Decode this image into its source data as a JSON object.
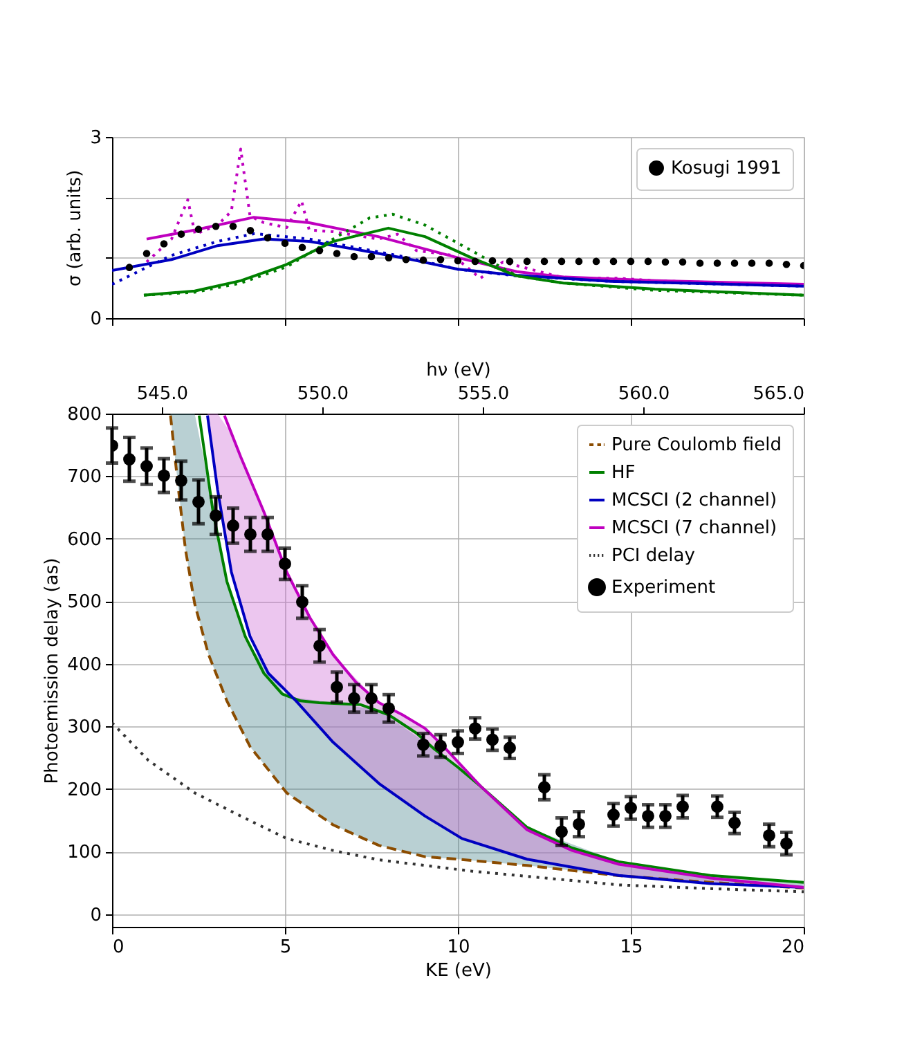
{
  "chart_data": [
    {
      "type": "line",
      "ylabel": "σ (arb. units)",
      "xlim": [
        0,
        20
      ],
      "ylim": [
        0,
        3
      ],
      "xticks": [
        {
          "value": 0,
          "label": null
        },
        {
          "value": 5,
          "label": null
        },
        {
          "value": 10,
          "label": null
        },
        {
          "value": 15,
          "label": null
        },
        {
          "value": 20,
          "label": null
        }
      ],
      "yticks": [
        0,
        {
          "value": 1,
          "label": null
        },
        {
          "value": 2,
          "label": null
        },
        3
      ],
      "tick_labels": "y",
      "grid": true,
      "legend": "top right",
      "series": [
        {
          "color": "#bf00bf",
          "line_style": "solid",
          "x": [
            1.0,
            2.4,
            4.1,
            5.7,
            7.7,
            10,
            11.7,
            13.1,
            15.7,
            20
          ],
          "values": [
            1.31,
            1.46,
            1.67,
            1.58,
            1.35,
            1.0,
            0.77,
            0.68,
            0.62,
            0.56
          ]
        },
        {
          "color": "#bf00bf",
          "line_style": "dotted",
          "x": [
            1.0,
            1.72,
            2.19,
            2.4,
            3.05,
            3.45,
            3.72,
            3.99,
            4.39,
            5.05,
            5.48,
            5.7,
            6.4,
            7.7,
            8.25,
            8.8,
            9.85,
            10.65,
            11.3,
            13.1,
            14.65,
            15.7,
            20
          ],
          "values": [
            0.93,
            1.31,
            1.96,
            1.39,
            1.54,
            1.77,
            2.8,
            1.69,
            1.58,
            1.5,
            1.94,
            1.46,
            1.43,
            1.31,
            1.39,
            1.12,
            1.04,
            0.66,
            0.93,
            0.66,
            0.66,
            0.62,
            0.54
          ]
        },
        {
          "color": "#0000c0",
          "line_style": "solid",
          "x": [
            0,
            1.72,
            3.05,
            4.39,
            5.7,
            7.05,
            8.4,
            10,
            11.7,
            14.4,
            20
          ],
          "values": [
            0.79,
            0.97,
            1.2,
            1.31,
            1.27,
            1.14,
            1.0,
            0.81,
            0.71,
            0.61,
            0.53
          ]
        },
        {
          "color": "#0000c0",
          "line_style": "dotted",
          "x": [
            0,
            1.72,
            3.05,
            4.12,
            5.7,
            7.05,
            8.4,
            10,
            11.7,
            14.4,
            20
          ],
          "values": [
            0.56,
            1.04,
            1.27,
            1.4,
            1.31,
            1.17,
            1.02,
            0.81,
            0.7,
            0.61,
            0.53
          ]
        },
        {
          "color": "#008000",
          "line_style": "solid",
          "x": [
            0.92,
            2.39,
            3.72,
            5.05,
            6.39,
            7.99,
            9.05,
            10.39,
            11.7,
            13.05,
            15.7,
            20
          ],
          "values": [
            0.38,
            0.45,
            0.62,
            0.89,
            1.27,
            1.49,
            1.35,
            1.0,
            0.7,
            0.58,
            0.48,
            0.38
          ]
        },
        {
          "color": "#008000",
          "line_style": "dotted",
          "x": [
            0.92,
            2.39,
            3.72,
            5.05,
            6.39,
            7.45,
            8.12,
            9.05,
            10.39,
            11.7,
            13.05,
            15.7,
            20
          ],
          "values": [
            0.38,
            0.43,
            0.58,
            0.85,
            1.31,
            1.66,
            1.72,
            1.54,
            1.12,
            0.7,
            0.58,
            0.46,
            0.38
          ]
        },
        {
          "name": "Kosugi 1991",
          "type": "scatter",
          "marker": "circle",
          "color": "#000000",
          "x": [
            0.5,
            1.0,
            1.5,
            2.0,
            2.5,
            3.0,
            3.5,
            4.0,
            4.5,
            5.0,
            5.5,
            6.0,
            6.5,
            7.0,
            7.5,
            8.0,
            8.5,
            9.0,
            9.5,
            10.0,
            10.5,
            11.0,
            11.5,
            12.0,
            12.5,
            13.0,
            13.5,
            14.0,
            14.5,
            15.0,
            15.5,
            16.0,
            16.5,
            17.0,
            17.5,
            18.0,
            18.5,
            19.0,
            19.5,
            20.0
          ],
          "values": [
            0.84,
            1.07,
            1.23,
            1.39,
            1.47,
            1.52,
            1.52,
            1.45,
            1.33,
            1.24,
            1.17,
            1.12,
            1.07,
            1.02,
            1.02,
            1.0,
            0.97,
            0.96,
            0.97,
            0.95,
            0.94,
            0.95,
            0.94,
            0.94,
            0.94,
            0.94,
            0.94,
            0.94,
            0.94,
            0.94,
            0.94,
            0.93,
            0.93,
            0.91,
            0.91,
            0.91,
            0.91,
            0.91,
            0.89,
            0.87
          ]
        }
      ]
    },
    {
      "type": "line",
      "xlabel": "KE (eV)",
      "ylabel": "Photoemission delay (as)",
      "x2label": "hν (eV)",
      "xlim": [
        0,
        20
      ],
      "ylim": [
        -20,
        800
      ],
      "xticks": [
        0,
        5,
        10,
        15,
        20
      ],
      "yticks": [
        0,
        100,
        200,
        300,
        400,
        500,
        600,
        700,
        800
      ],
      "x2lim": [
        543.45,
        565
      ],
      "x2ticks": [
        {
          "value": 545,
          "label": "545.0"
        },
        {
          "value": 550,
          "label": "550.0"
        },
        {
          "value": 555,
          "label": "555.0"
        },
        {
          "value": 560,
          "label": "560.0"
        },
        {
          "value": 565,
          "label": "565.0"
        }
      ],
      "grid": true,
      "legend": "top right",
      "series": [
        {
          "name": "Pure Coulomb field",
          "color": "#8b4c00",
          "line_style": "dashed",
          "x": [
            1.69,
            1.92,
            2.12,
            2.39,
            2.79,
            3.32,
            3.99,
            5.05,
            6.39,
            7.72,
            9.05,
            10,
            12,
            14.6,
            17.3,
            20
          ],
          "values": [
            797,
            679,
            584,
            496,
            415,
            341,
            268,
            194,
            143,
            110,
            92,
            88,
            78,
            62,
            51,
            42
          ],
          "lower": [
            797,
            679,
            584,
            496,
            415,
            341,
            268,
            194,
            143,
            110,
            92,
            88,
            78,
            62,
            51,
            42
          ],
          "upper": [
            800,
            800,
            800,
            800,
            690,
            532,
            430,
            348,
            338,
            326,
            275,
            235,
            139,
            85,
            62,
            51
          ]
        },
        {
          "name": "HF",
          "color": "#008000",
          "line_style": "solid",
          "x": [
            2.52,
            2.92,
            3.32,
            3.85,
            4.39,
            4.92,
            5.45,
            5.99,
            7.19,
            7.99,
            8.79,
            9.32,
            10,
            10.65,
            12,
            13.3,
            14.65,
            17.3,
            20
          ],
          "values": [
            797,
            643,
            532,
            444,
            385,
            352,
            341,
            338,
            335,
            319,
            290,
            264,
            235,
            205,
            139,
            106,
            84,
            62,
            51
          ]
        },
        {
          "name": "MCSCI (2 channel)",
          "color": "#0000c0",
          "line_style": "solid",
          "x": [
            2.76,
            3.05,
            3.45,
            3.99,
            4.52,
            5.32,
            6.39,
            7.72,
            9.05,
            10.12,
            12,
            14.65,
            17.3,
            20
          ],
          "values": [
            797,
            679,
            547,
            444,
            385,
            341,
            275,
            209,
            157,
            121,
            88,
            62,
            49,
            43
          ],
          "lower": [
            797,
            679,
            547,
            444,
            385,
            341,
            275,
            209,
            157,
            121,
            88,
            62,
            49,
            43
          ],
          "upper": [
            800,
            800,
            768,
            693,
            624,
            516,
            415,
            338,
            297,
            236,
            135,
            80,
            58,
            43
          ]
        },
        {
          "name": "MCSCI (7 channel)",
          "color": "#bf00bf",
          "line_style": "solid",
          "x": [
            3.25,
            3.72,
            4.39,
            5.05,
            5.72,
            6.39,
            7.05,
            7.72,
            8.39,
            9.05,
            9.59,
            10.65,
            12,
            13.3,
            14.65,
            17.3,
            20
          ],
          "values": [
            797,
            731,
            643,
            547,
            474,
            415,
            371,
            338,
            319,
            297,
            268,
            205,
            135,
            102,
            80,
            58,
            43
          ]
        },
        {
          "name": "PCI delay",
          "color": "#333333",
          "line_style": "dotted",
          "x": [
            0,
            1.05,
            2.39,
            3.72,
            5.05,
            6.39,
            7.72,
            10.39,
            14.65,
            17.3,
            20
          ],
          "values": [
            306,
            246,
            194,
            157,
            121,
            102,
            87,
            69,
            47,
            41,
            36
          ]
        },
        {
          "name": "Experiment",
          "type": "scatter",
          "marker": "circle",
          "color": "#000000",
          "x": [
            0,
            0.5,
            1.0,
            1.5,
            2.0,
            2.5,
            3.0,
            3.5,
            4.0,
            4.5,
            5.0,
            5.5,
            6.0,
            6.5,
            7.0,
            7.5,
            8.0,
            9.0,
            9.5,
            10.0,
            10.5,
            11.0,
            11.5,
            12.5,
            13.0,
            13.5,
            14.5,
            15.0,
            15.5,
            16.0,
            16.5,
            17.5,
            18.0,
            19.0,
            19.5
          ],
          "values": [
            749,
            727,
            716,
            701,
            693,
            659,
            637,
            621,
            607,
            607,
            560,
            499,
            429,
            363,
            345,
            345,
            329,
            271,
            269,
            275,
            297,
            279,
            266,
            203,
            132,
            144,
            159,
            170,
            157,
            157,
            172,
            172,
            146,
            126,
            113
          ],
          "errors": [
            28,
            35,
            29,
            27,
            31,
            35,
            30,
            28,
            27,
            27,
            25,
            26,
            26,
            24,
            22,
            22,
            22,
            18,
            18,
            18,
            17,
            17,
            17,
            20,
            22,
            20,
            18,
            18,
            18,
            18,
            18,
            17,
            17,
            18,
            18
          ]
        }
      ]
    }
  ]
}
